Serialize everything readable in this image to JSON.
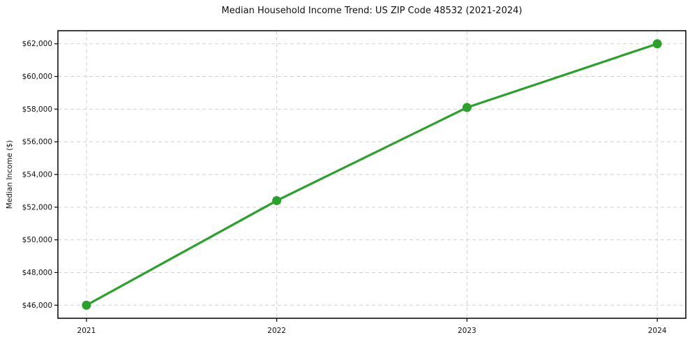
{
  "chart_data": {
    "type": "line",
    "title": "Median Household Income Trend: US ZIP Code 48532 (2021-2024)",
    "xlabel": "",
    "ylabel": "Median Income ($)",
    "x": [
      2021,
      2022,
      2023,
      2024
    ],
    "values": [
      46000,
      52400,
      58100,
      62000
    ],
    "xtick_labels": [
      "2021",
      "2022",
      "2023",
      "2024"
    ],
    "ytick_values": [
      46000,
      48000,
      50000,
      52000,
      54000,
      56000,
      58000,
      60000,
      62000
    ],
    "ytick_labels": [
      "$46,000",
      "$48,000",
      "$50,000",
      "$52,000",
      "$54,000",
      "$56,000",
      "$58,000",
      "$60,000",
      "$62,000"
    ],
    "xlim": [
      2020.85,
      2024.15
    ],
    "ylim": [
      45200,
      62800
    ],
    "grid": true,
    "grid_style": "dashed",
    "legend": false,
    "marker": "circle"
  },
  "style": {
    "line_color": "#2ca02c",
    "marker_color": "#2ca02c",
    "grid_color": "#d0d0d0",
    "spine_color": "#000000",
    "tick_color": "#000000",
    "background": "#ffffff",
    "text_color": "#111111"
  }
}
